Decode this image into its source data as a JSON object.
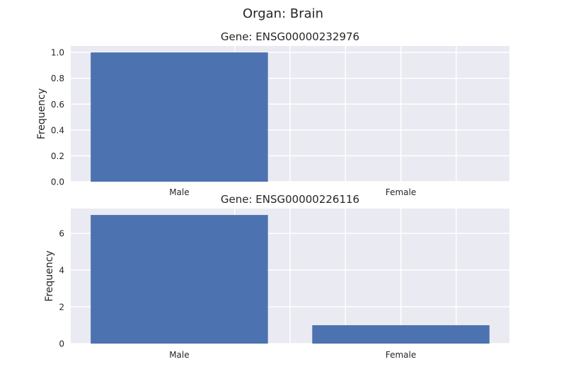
{
  "figure": {
    "title": "Organ: Brain",
    "background": "#ffffff",
    "axes_facecolor": "#eaeaf2",
    "grid_color": "#ffffff",
    "bar_color": "#4c72b0"
  },
  "chart_data": [
    {
      "type": "bar",
      "title": "Gene: ENSG00000232976",
      "xlabel": "",
      "ylabel": "Frequency",
      "categories": [
        "Male",
        "Female"
      ],
      "values": [
        1,
        0
      ],
      "ylim": [
        0,
        1.05
      ],
      "yticks": [
        0.0,
        0.2,
        0.4,
        0.6,
        0.8,
        1.0
      ],
      "ytick_labels": [
        "0.0",
        "0.2",
        "0.4",
        "0.6",
        "0.8",
        "1.0"
      ],
      "grid": true
    },
    {
      "type": "bar",
      "title": "Gene: ENSG00000226116",
      "xlabel": "",
      "ylabel": "Frequency",
      "categories": [
        "Male",
        "Female"
      ],
      "values": [
        7,
        1
      ],
      "ylim": [
        0,
        7.35
      ],
      "yticks": [
        0,
        2,
        4,
        6
      ],
      "ytick_labels": [
        "0",
        "2",
        "4",
        "6"
      ],
      "grid": true
    }
  ]
}
